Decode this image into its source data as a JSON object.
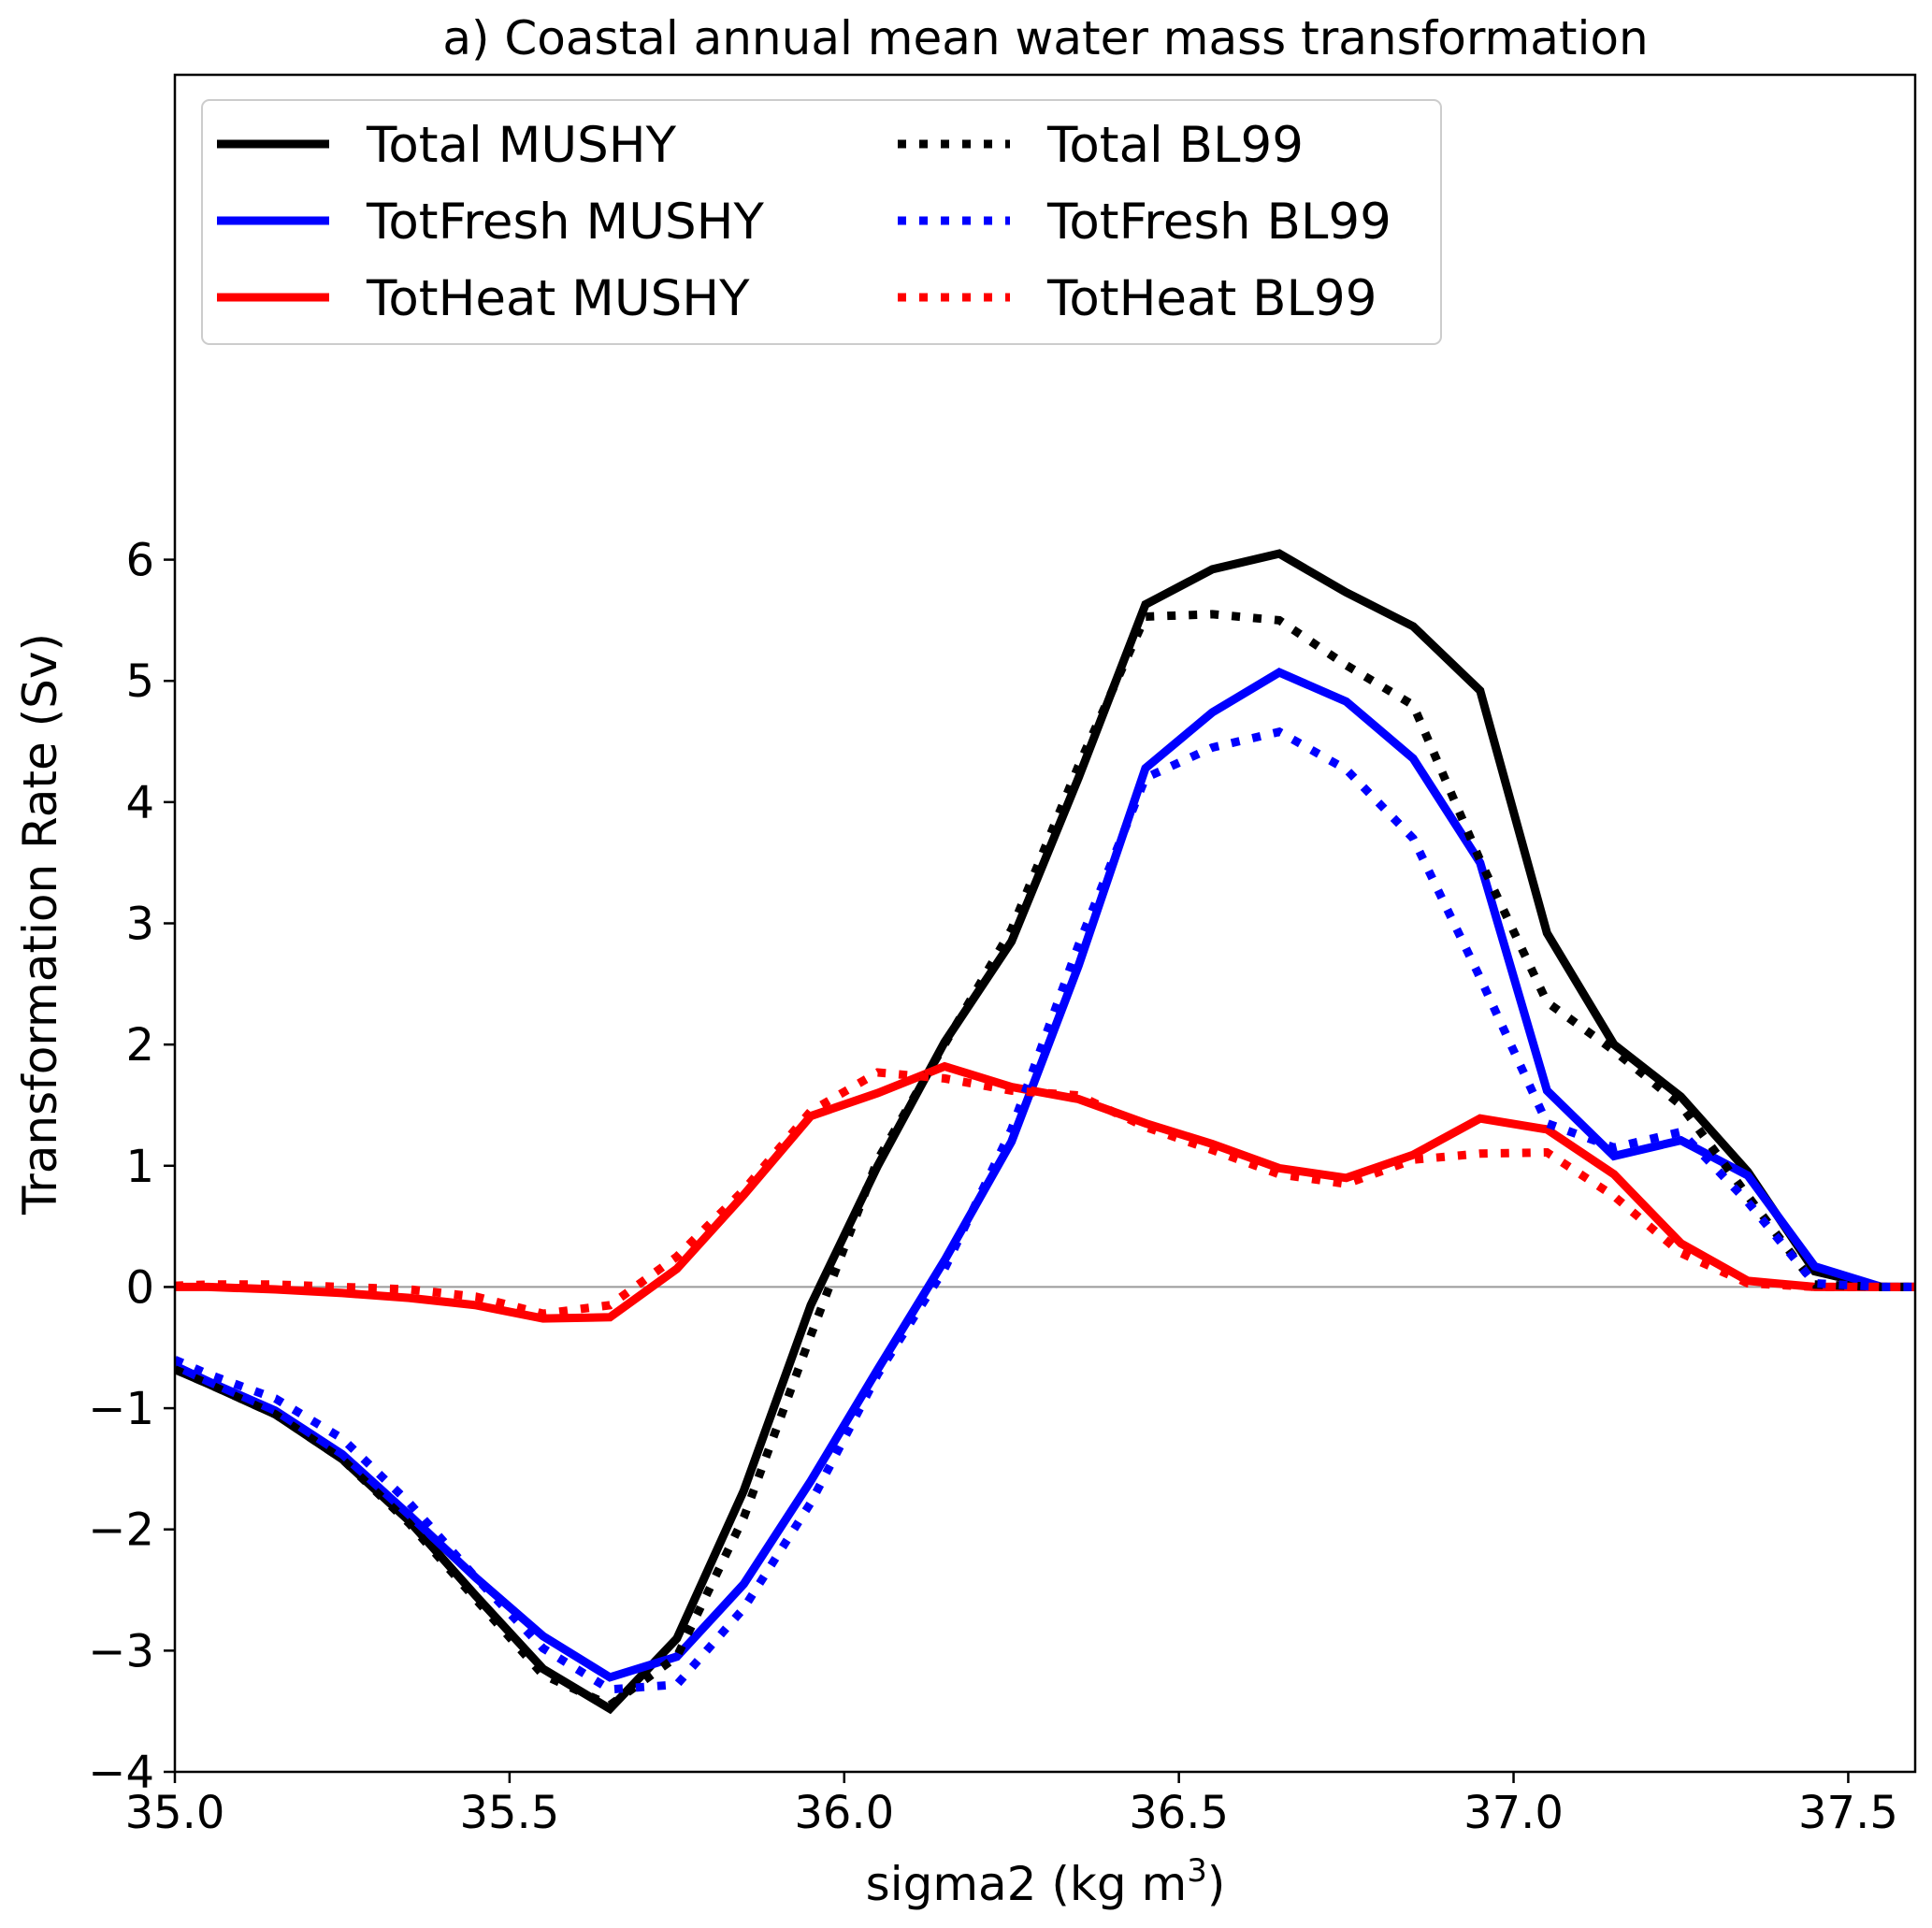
{
  "chart_data": {
    "type": "line",
    "title": "a) Coastal annual mean water mass transformation",
    "xlabel": "sigma2 (kg m",
    "xlabel_sup": "3",
    "xlabel_end": ")",
    "ylabel": "Transformation Rate (Sv)",
    "xlim": [
      35.0,
      37.6
    ],
    "ylim": [
      -4,
      10
    ],
    "xticks": [
      35.0,
      35.5,
      36.0,
      36.5,
      37.0,
      37.5
    ],
    "xtick_labels": [
      "35.0",
      "35.5",
      "36.0",
      "36.5",
      "37.0",
      "37.5"
    ],
    "yticks": [
      -4,
      -3,
      -2,
      -1,
      0,
      1,
      2,
      3,
      4,
      5,
      6
    ],
    "ytick_labels": [
      "−4",
      "−3",
      "−2",
      "−1",
      "0",
      "1",
      "2",
      "3",
      "4",
      "5",
      "6"
    ],
    "zero_line": true,
    "grid": false,
    "legend_position": "top-left",
    "legend_columns": 2,
    "x": [
      35.0,
      35.05,
      35.15,
      35.25,
      35.35,
      35.45,
      35.55,
      35.65,
      35.75,
      35.85,
      35.95,
      36.05,
      36.15,
      36.25,
      36.35,
      36.45,
      36.55,
      36.65,
      36.75,
      36.85,
      36.95,
      37.05,
      37.15,
      37.25,
      37.35,
      37.45,
      37.55,
      37.6
    ],
    "series": [
      {
        "name": "Total MUSHY",
        "color": "#000000",
        "style": "solid",
        "values": [
          -0.68,
          -0.8,
          -1.05,
          -1.42,
          -1.93,
          -2.55,
          -3.15,
          -3.48,
          -2.9,
          -1.68,
          -0.15,
          1.0,
          2.02,
          2.85,
          4.2,
          5.63,
          5.92,
          6.05,
          5.73,
          5.45,
          4.92,
          2.92,
          2.0,
          1.57,
          0.95,
          0.13,
          0.0,
          0.0
        ]
      },
      {
        "name": "TotFresh MUSHY",
        "color": "#0000ff",
        "style": "solid",
        "values": [
          -0.65,
          -0.78,
          -1.02,
          -1.38,
          -1.88,
          -2.4,
          -2.88,
          -3.22,
          -3.05,
          -2.45,
          -1.6,
          -0.68,
          0.22,
          1.2,
          2.65,
          4.28,
          4.74,
          5.07,
          4.83,
          4.36,
          3.5,
          1.62,
          1.08,
          1.21,
          0.92,
          0.17,
          0.0,
          0.0
        ]
      },
      {
        "name": "TotHeat MUSHY",
        "color": "#ff0000",
        "style": "solid",
        "values": [
          0.0,
          0.0,
          -0.02,
          -0.05,
          -0.09,
          -0.15,
          -0.26,
          -0.25,
          0.15,
          0.76,
          1.41,
          1.6,
          1.82,
          1.65,
          1.55,
          1.35,
          1.18,
          0.98,
          0.9,
          1.09,
          1.39,
          1.3,
          0.93,
          0.36,
          0.05,
          0.0,
          0.0,
          0.0
        ]
      },
      {
        "name": "Total BL99",
        "color": "#000000",
        "style": "dotted",
        "values": [
          -0.68,
          -0.8,
          -1.05,
          -1.42,
          -1.95,
          -2.58,
          -3.2,
          -3.45,
          -3.05,
          -1.9,
          -0.4,
          1.05,
          2.0,
          2.95,
          4.3,
          5.53,
          5.55,
          5.5,
          5.13,
          4.8,
          3.52,
          2.35,
          1.95,
          1.5,
          0.75,
          0.02,
          0.0,
          0.0
        ]
      },
      {
        "name": "TotFresh BL99",
        "color": "#0000ff",
        "style": "dotted",
        "values": [
          -0.6,
          -0.72,
          -0.92,
          -1.25,
          -1.78,
          -2.4,
          -2.98,
          -3.32,
          -3.28,
          -2.65,
          -1.78,
          -0.72,
          0.15,
          1.3,
          2.82,
          4.2,
          4.45,
          4.58,
          4.27,
          3.7,
          2.55,
          1.35,
          1.15,
          1.28,
          0.7,
          0.03,
          0.0,
          0.0
        ]
      },
      {
        "name": "TotHeat BL99",
        "color": "#ff0000",
        "style": "dotted",
        "values": [
          0.01,
          0.02,
          0.02,
          0.0,
          -0.02,
          -0.08,
          -0.22,
          -0.15,
          0.25,
          0.8,
          1.45,
          1.77,
          1.72,
          1.62,
          1.58,
          1.32,
          1.13,
          0.93,
          0.85,
          1.05,
          1.1,
          1.11,
          0.75,
          0.28,
          0.03,
          0.0,
          0.0,
          0.0
        ]
      }
    ]
  }
}
